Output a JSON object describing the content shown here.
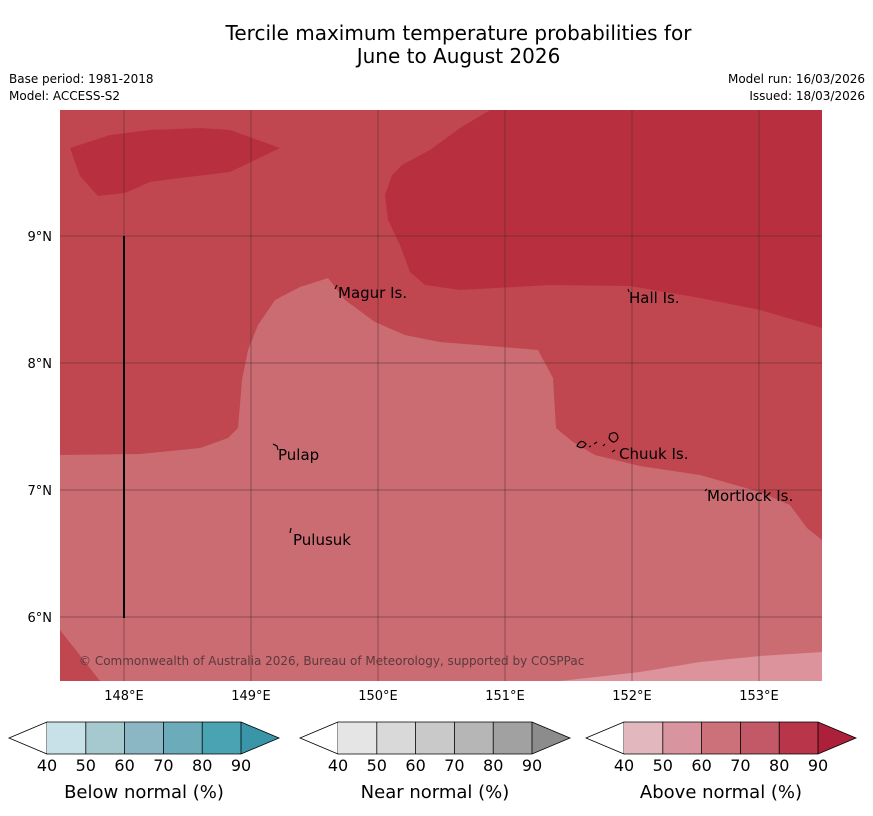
{
  "title": {
    "line1": "Tercile maximum temperature probabilities for",
    "line2": "June to August 2026"
  },
  "meta": {
    "base_period": "Base period: 1981-2018",
    "model": "Model: ACCESS-S2",
    "model_run": "Model run: 16/03/2026",
    "issued": "Issued: 18/03/2026"
  },
  "map": {
    "lat_labels": [
      "9°N",
      "8°N",
      "7°N",
      "6°N"
    ],
    "lon_labels": [
      "148°E",
      "149°E",
      "150°E",
      "151°E",
      "152°E",
      "153°E"
    ],
    "places": [
      "Magur Is.",
      "Hall Is.",
      "Pulap",
      "Chuuk Is.",
      "Mortlock Is.",
      "Pulusuk"
    ],
    "copyright": "© Commonwealth of Australia 2026, Bureau of Meteorology, supported by COSPPac",
    "category_colors": {
      "above_50": "#cb6b72",
      "above_70": "#c0464f",
      "above_80": "#b8303f",
      "above_40": "#dc939b"
    }
  },
  "legends": [
    {
      "label": "Below normal (%)",
      "ticks": [
        "40",
        "50",
        "60",
        "70",
        "80",
        "90"
      ],
      "colors": [
        "#ffffff",
        "#c8e0e7",
        "#a6c9cf",
        "#8ab7c3",
        "#6cabb9",
        "#4aa3b3",
        "#3996a8"
      ]
    },
    {
      "label": "Near normal (%)",
      "ticks": [
        "40",
        "50",
        "60",
        "70",
        "80",
        "90"
      ],
      "colors": [
        "#ffffff",
        "#e5e5e5",
        "#d9d9d9",
        "#c9c9c9",
        "#b6b6b6",
        "#a1a1a1",
        "#8c8c8c"
      ]
    },
    {
      "label": "Above normal (%)",
      "ticks": [
        "40",
        "50",
        "60",
        "70",
        "80",
        "90"
      ],
      "colors": [
        "#ffffff",
        "#e2b7bd",
        "#d9959f",
        "#cc7079",
        "#c35967",
        "#b8354a",
        "#ad2039"
      ]
    }
  ]
}
